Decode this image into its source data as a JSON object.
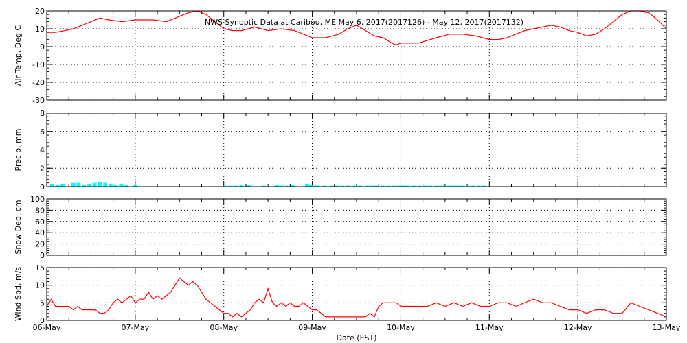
{
  "chart_data": {
    "type": "line",
    "title": "NWS Synoptic Data at Caribou, ME   May  6, 2017(2017126) - May 12, 2017(2017132)",
    "xlabel": "Date (EST)",
    "x_ticks": [
      "06-May",
      "07-May",
      "08-May",
      "09-May",
      "10-May",
      "11-May",
      "12-May",
      "13-May"
    ],
    "panels": [
      {
        "id": "temp",
        "type": "line",
        "ylabel": "Air Temp, Deg C",
        "ylim": [
          -30,
          20
        ],
        "yticks": [
          "-30",
          "-20",
          "-10",
          "0",
          "10",
          "20"
        ],
        "color": "#ff0000",
        "x": [
          0,
          0.1,
          0.3,
          0.5,
          0.6,
          0.7,
          0.85,
          1.0,
          1.2,
          1.35,
          1.5,
          1.6,
          1.7,
          1.8,
          1.9,
          2.0,
          2.1,
          2.2,
          2.35,
          2.5,
          2.65,
          2.8,
          2.9,
          3.0,
          3.15,
          3.3,
          3.4,
          3.5,
          3.6,
          3.7,
          3.8,
          3.9,
          3.95,
          4.0,
          4.1,
          4.2,
          4.4,
          4.55,
          4.7,
          4.85,
          5.0,
          5.1,
          5.2,
          5.3,
          5.4,
          5.5,
          5.6,
          5.7,
          5.8,
          5.9,
          6.0,
          6.1,
          6.2,
          6.3,
          6.4,
          6.5,
          6.6,
          6.7,
          6.8,
          6.9,
          7.0
        ],
        "values": [
          8,
          8,
          10,
          14,
          16,
          15,
          14,
          15,
          15,
          14,
          17,
          19,
          20,
          18,
          14,
          10,
          9,
          9,
          11,
          9,
          10,
          9,
          7,
          5,
          5,
          7,
          10,
          12,
          9,
          6,
          5,
          2,
          1,
          2,
          2,
          2,
          5,
          7,
          7,
          6,
          4,
          4,
          5,
          7,
          9,
          10,
          11,
          12,
          11,
          9,
          8,
          6,
          7,
          10,
          14,
          18,
          20,
          20,
          19,
          15,
          10
        ]
      },
      {
        "id": "precip",
        "type": "bar",
        "ylabel": "Precip, mm",
        "ylim": [
          0,
          8
        ],
        "yticks": [
          "0",
          "2",
          "4",
          "6",
          "8"
        ],
        "color": "#00ffff",
        "x": [
          0.06,
          0.12,
          0.18,
          0.3,
          0.36,
          0.42,
          0.48,
          0.54,
          0.6,
          0.66,
          0.72,
          0.78,
          0.84,
          0.9,
          1.0,
          2.02,
          2.08,
          2.14,
          2.2,
          2.28,
          2.45,
          2.6,
          2.66,
          2.72,
          2.78,
          2.94,
          2.98,
          3.02,
          3.06,
          3.14,
          3.22,
          3.28,
          3.34,
          3.4,
          3.48,
          3.54,
          3.62,
          3.68,
          3.72,
          3.8,
          3.86,
          3.92,
          3.98,
          4.01,
          4.04,
          4.07,
          4.15,
          4.21,
          4.27,
          4.33,
          4.4,
          4.45,
          4.5,
          4.55,
          4.6,
          4.65,
          4.7,
          4.76,
          4.82,
          4.88,
          4.94
        ],
        "values": [
          0.3,
          0.2,
          0.3,
          0.4,
          0.4,
          0.2,
          0.3,
          0.4,
          0.5,
          0.4,
          0.3,
          0.2,
          0.3,
          0.2,
          0.2,
          0.1,
          0.1,
          0.1,
          0.2,
          0.2,
          0.1,
          0.2,
          0.1,
          0.1,
          0.2,
          0.3,
          0.2,
          0.1,
          0.1,
          0.1,
          0.1,
          0.1,
          0.1,
          0.1,
          0.1,
          0.1,
          0.1,
          0.1,
          0.1,
          0.1,
          0.1,
          0.1,
          0.1,
          0.1,
          0.1,
          0.1,
          0.1,
          0.1,
          0.1,
          0.1,
          0.1,
          0.1,
          0.1,
          0.1,
          0.1,
          0.1,
          0.1,
          0.1,
          0.1,
          0.1,
          0.1
        ]
      },
      {
        "id": "snow",
        "type": "line",
        "ylabel": "Snow Dep, cm",
        "ylim": [
          0,
          100
        ],
        "yticks": [
          "0",
          "20",
          "40",
          "60",
          "80",
          "100"
        ],
        "color": "#ff0000",
        "x": [],
        "values": []
      },
      {
        "id": "wind",
        "type": "line",
        "ylabel": "Wind Spd, m/s",
        "ylim": [
          0,
          15
        ],
        "yticks": [
          "0",
          "5",
          "10",
          "15"
        ],
        "color": "#ff0000",
        "x": [
          0,
          0.05,
          0.1,
          0.15,
          0.2,
          0.25,
          0.3,
          0.35,
          0.4,
          0.45,
          0.5,
          0.55,
          0.6,
          0.65,
          0.7,
          0.75,
          0.8,
          0.85,
          0.9,
          0.95,
          1.0,
          1.05,
          1.1,
          1.15,
          1.2,
          1.25,
          1.3,
          1.35,
          1.4,
          1.45,
          1.5,
          1.55,
          1.6,
          1.65,
          1.7,
          1.75,
          1.8,
          1.85,
          1.9,
          1.95,
          2.0,
          2.05,
          2.1,
          2.15,
          2.2,
          2.25,
          2.3,
          2.35,
          2.4,
          2.45,
          2.5,
          2.55,
          2.6,
          2.65,
          2.7,
          2.75,
          2.8,
          2.85,
          2.9,
          2.95,
          3.0,
          3.05,
          3.1,
          3.15,
          3.2,
          3.25,
          3.3,
          3.35,
          3.4,
          3.45,
          3.5,
          3.55,
          3.6,
          3.65,
          3.7,
          3.75,
          3.8,
          3.85,
          3.9,
          3.95,
          4.0,
          4.1,
          4.2,
          4.3,
          4.4,
          4.5,
          4.6,
          4.7,
          4.8,
          4.9,
          5.0,
          5.1,
          5.2,
          5.3,
          5.4,
          5.5,
          5.6,
          5.7,
          5.8,
          5.9,
          6.0,
          6.1,
          6.2,
          6.3,
          6.4,
          6.5,
          6.6,
          6.7,
          6.8,
          6.9,
          7.0
        ],
        "values": [
          4,
          6,
          4,
          4,
          4,
          4,
          3,
          4,
          3,
          3,
          3,
          3,
          2,
          2,
          3,
          5,
          6,
          5,
          6,
          7,
          5,
          6,
          6,
          8,
          6,
          7,
          6,
          7,
          8,
          10,
          12,
          11,
          10,
          11,
          10,
          8,
          6,
          5,
          4,
          3,
          2,
          2,
          1,
          2,
          1,
          2,
          3,
          5,
          6,
          5,
          9,
          5,
          4,
          5,
          4,
          5,
          4,
          4,
          5,
          4,
          3,
          3,
          2,
          1,
          1,
          1,
          1,
          1,
          1,
          1,
          1,
          1,
          1,
          2,
          1,
          4,
          5,
          5,
          5,
          5,
          4,
          4,
          4,
          4,
          5,
          4,
          5,
          4,
          5,
          4,
          4,
          5,
          5,
          4,
          5,
          6,
          5,
          5,
          4,
          3,
          3,
          2,
          3,
          3,
          2,
          2,
          5,
          4,
          3,
          2,
          1
        ]
      }
    ]
  }
}
